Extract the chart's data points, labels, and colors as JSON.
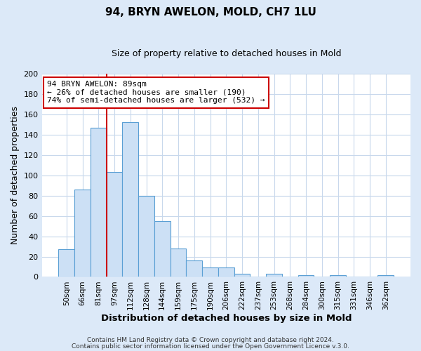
{
  "title": "94, BRYN AWELON, MOLD, CH7 1LU",
  "subtitle": "Size of property relative to detached houses in Mold",
  "xlabel": "Distribution of detached houses by size in Mold",
  "ylabel": "Number of detached properties",
  "bin_labels": [
    "50sqm",
    "66sqm",
    "81sqm",
    "97sqm",
    "112sqm",
    "128sqm",
    "144sqm",
    "159sqm",
    "175sqm",
    "190sqm",
    "206sqm",
    "222sqm",
    "237sqm",
    "253sqm",
    "268sqm",
    "284sqm",
    "300sqm",
    "315sqm",
    "331sqm",
    "346sqm",
    "362sqm"
  ],
  "bar_heights": [
    27,
    86,
    147,
    103,
    152,
    80,
    55,
    28,
    16,
    9,
    9,
    3,
    0,
    3,
    0,
    2,
    0,
    2,
    0,
    0,
    2
  ],
  "bar_color": "#cce0f5",
  "bar_edge_color": "#5a9fd4",
  "vline_color": "#cc0000",
  "vline_position": 2.5,
  "ylim": [
    0,
    200
  ],
  "yticks": [
    0,
    20,
    40,
    60,
    80,
    100,
    120,
    140,
    160,
    180,
    200
  ],
  "annotation_title": "94 BRYN AWELON: 89sqm",
  "annotation_line1": "← 26% of detached houses are smaller (190)",
  "annotation_line2": "74% of semi-detached houses are larger (532) →",
  "annotation_box_facecolor": "#ffffff",
  "annotation_box_edgecolor": "#cc0000",
  "footer1": "Contains HM Land Registry data © Crown copyright and database right 2024.",
  "footer2": "Contains public sector information licensed under the Open Government Licence v.3.0.",
  "fig_bg_color": "#dce9f8",
  "plot_bg_color": "#ffffff",
  "grid_color": "#c8d8ec",
  "title_fontsize": 11,
  "subtitle_fontsize": 9
}
